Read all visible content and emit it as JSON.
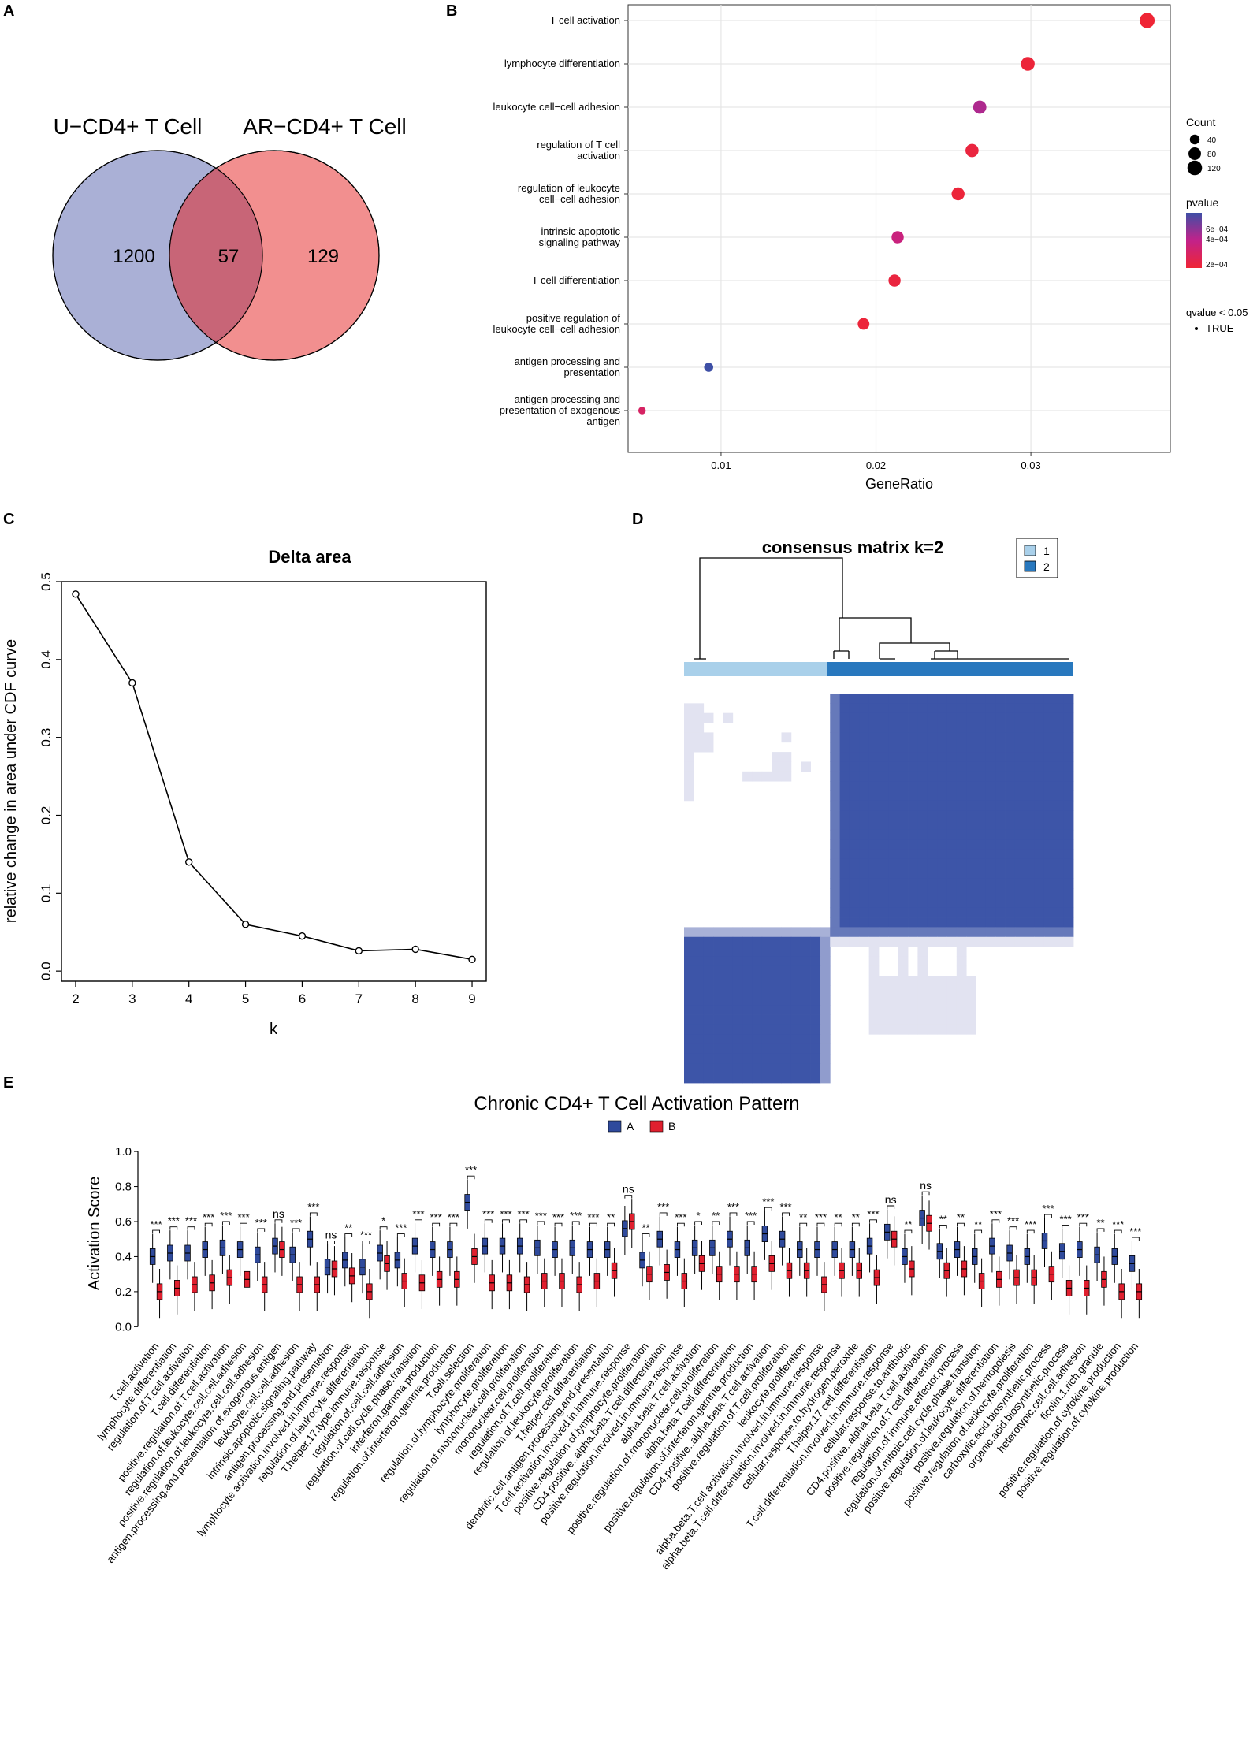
{
  "panel_labels": {
    "a": "A",
    "b": "B",
    "c": "C",
    "d": "D",
    "e": "E"
  },
  "colors": {
    "venn_left": "#aab0d6",
    "venn_right": "#f28f8f",
    "venn_overlap": "#c86577",
    "group_a": "#2f4a9c",
    "group_b": "#e0202f",
    "consensus_blue": "#3d55a8",
    "consensus_light": "#e2e3f1",
    "track_1": "#a9d0ea",
    "track_2": "#2878be"
  },
  "chart_data": [
    {
      "type": "venn",
      "sets": [
        {
          "name": "U−CD4+ T Cell",
          "only": 1200
        },
        {
          "name": "AR−CD4+ T Cell",
          "only": 129
        }
      ],
      "intersection": 57
    },
    {
      "type": "scatter",
      "subtype": "dotplot",
      "xlabel": "GeneRatio",
      "xlim": [
        0.004,
        0.039
      ],
      "xticks": [
        0.01,
        0.02,
        0.03
      ],
      "xtick_labels": [
        "0.01",
        "0.02",
        "0.03"
      ],
      "terms": [
        {
          "label": [
            "T cell activation"
          ],
          "gene_ratio": 0.0375,
          "count": 129,
          "pvalue": 2e-05
        },
        {
          "label": [
            "lymphocyte differentiation"
          ],
          "gene_ratio": 0.0298,
          "count": 102,
          "pvalue": 4e-05
        },
        {
          "label": [
            "leukocyte cell−cell adhesion"
          ],
          "gene_ratio": 0.0267,
          "count": 92,
          "pvalue": 0.0004
        },
        {
          "label": [
            "regulation of T cell",
            "activation"
          ],
          "gene_ratio": 0.0262,
          "count": 90,
          "pvalue": 6e-05
        },
        {
          "label": [
            "regulation of leukocyte",
            "cell−cell adhesion"
          ],
          "gene_ratio": 0.0253,
          "count": 87,
          "pvalue": 4e-05
        },
        {
          "label": [
            "intrinsic apoptotic",
            "signaling pathway"
          ],
          "gene_ratio": 0.0214,
          "count": 74,
          "pvalue": 0.0003
        },
        {
          "label": [
            "T cell differentiation"
          ],
          "gene_ratio": 0.0212,
          "count": 73,
          "pvalue": 6e-05
        },
        {
          "label": [
            "positive regulation of",
            "leukocyte cell−cell adhesion"
          ],
          "gene_ratio": 0.0192,
          "count": 66,
          "pvalue": 4e-05
        },
        {
          "label": [
            "antigen processing and",
            "presentation"
          ],
          "gene_ratio": 0.0092,
          "count": 32,
          "pvalue": 0.00068
        },
        {
          "label": [
            "antigen processing and",
            "presentation of exogenous",
            "antigen"
          ],
          "gene_ratio": 0.0049,
          "count": 17,
          "pvalue": 0.0002
        }
      ],
      "legend_count_title": "Count",
      "legend_count_values": [
        40,
        80,
        120
      ],
      "legend_count_labels": [
        "40",
        "80",
        "120"
      ],
      "legend_p_title": "pvalue",
      "legend_p_labels": [
        "6e−04",
        "4e−04",
        "2e−04"
      ],
      "legend_q_title": "qvalue < 0.05",
      "legend_q_label": "TRUE"
    },
    {
      "type": "line",
      "title": "Delta area",
      "xlabel": "k",
      "ylabel": "relative change in area under CDF curve",
      "x": [
        2,
        3,
        4,
        5,
        6,
        7,
        8,
        9
      ],
      "y": [
        0.484,
        0.37,
        0.14,
        0.06,
        0.045,
        0.026,
        0.028,
        0.015
      ],
      "xlim": [
        1.75,
        9.25
      ],
      "ylim": [
        -0.013,
        0.5
      ],
      "yticks": [
        0.0,
        0.1,
        0.2,
        0.3,
        0.4,
        0.5
      ],
      "ytick_labels": [
        "0.0",
        "0.1",
        "0.2",
        "0.3",
        "0.4",
        "0.5"
      ],
      "xtick_labels": [
        "2",
        "3",
        "4",
        "5",
        "6",
        "7",
        "8",
        "9"
      ]
    },
    {
      "type": "heatmap",
      "title": "consensus matrix k=2",
      "legend": [
        "1",
        "2"
      ],
      "cluster_sizes": [
        15,
        25
      ]
    },
    {
      "type": "box",
      "title": "Chronic CD4+ T Cell Activation Pattern",
      "ylabel": "Activation Score",
      "ylim": [
        -0.03,
        1.05
      ],
      "yticks": [
        0.0,
        0.2,
        0.4,
        0.6,
        0.8,
        1.0
      ],
      "ytick_labels": [
        "0.0",
        "0.2",
        "0.4",
        "0.6",
        "0.8",
        "1.0"
      ],
      "legend": [
        "A",
        "B"
      ],
      "categories": [
        {
          "label": "T.cell.activation",
          "a": 0.4,
          "b": 0.2,
          "sig": "***"
        },
        {
          "label": "lymphocyte.differentiation",
          "a": 0.42,
          "b": 0.22,
          "sig": "***"
        },
        {
          "label": "regulation.of.T.cell.activation",
          "a": 0.42,
          "b": 0.24,
          "sig": "***"
        },
        {
          "label": "T.cell.differentiation",
          "a": 0.44,
          "b": 0.25,
          "sig": "***"
        },
        {
          "label": "positive.regulation.of.T.cell.activation",
          "a": 0.45,
          "b": 0.28,
          "sig": "***"
        },
        {
          "label": "regulation.of.leukocyte.cell.cell.adhesion",
          "a": 0.44,
          "b": 0.27,
          "sig": "***"
        },
        {
          "label": "positive.regulation.of.leukocyte.cell.cell.adhesion",
          "a": 0.41,
          "b": 0.24,
          "sig": "***"
        },
        {
          "label": "antigen.processing.and.presentation.of.exogenous.antigen",
          "a": 0.46,
          "b": 0.44,
          "sig": "ns"
        },
        {
          "label": "leukocyte.cell.cell.adhesion",
          "a": 0.41,
          "b": 0.24,
          "sig": "***"
        },
        {
          "label": "intrinsic.apoptotic.signaling.pathway",
          "a": 0.5,
          "b": 0.24,
          "sig": "***"
        },
        {
          "label": "antigen.processing.and.presentation",
          "a": 0.34,
          "b": 0.33,
          "sig": "ns"
        },
        {
          "label": "lymphocyte.activation.involved.in.immune.response",
          "a": 0.38,
          "b": 0.29,
          "sig": "**"
        },
        {
          "label": "regulation.of.leukocyte.differentiation",
          "a": 0.34,
          "b": 0.2,
          "sig": "***"
        },
        {
          "label": "T.helper.17.type.immune.response",
          "a": 0.42,
          "b": 0.36,
          "sig": "*"
        },
        {
          "label": "regulation.of.cell.cell.adhesion",
          "a": 0.38,
          "b": 0.26,
          "sig": "***"
        },
        {
          "label": "regulation.of.cell.cycle.phase.transition",
          "a": 0.46,
          "b": 0.25,
          "sig": "***"
        },
        {
          "label": "interferon.gamma.production",
          "a": 0.44,
          "b": 0.27,
          "sig": "***"
        },
        {
          "label": "regulation.of.interferon.gamma.production",
          "a": 0.44,
          "b": 0.27,
          "sig": "***"
        },
        {
          "label": "T.cell.selection",
          "a": 0.71,
          "b": 0.4,
          "sig": "***"
        },
        {
          "label": "regulation.of.lymphocyte.proliferation",
          "a": 0.46,
          "b": 0.25,
          "sig": "***"
        },
        {
          "label": "lymphocyte.proliferation",
          "a": 0.46,
          "b": 0.25,
          "sig": "***"
        },
        {
          "label": "regulation.of.mononuclear.cell.proliferation",
          "a": 0.46,
          "b": 0.24,
          "sig": "***"
        },
        {
          "label": "mononuclear.cell.proliferation",
          "a": 0.45,
          "b": 0.26,
          "sig": "***"
        },
        {
          "label": "regulation.of.T.cell.proliferation",
          "a": 0.44,
          "b": 0.26,
          "sig": "***"
        },
        {
          "label": "regulation.of.leukocyte.proliferation",
          "a": 0.45,
          "b": 0.24,
          "sig": "***"
        },
        {
          "label": "T.helper.cell.differentiation",
          "a": 0.44,
          "b": 0.26,
          "sig": "***"
        },
        {
          "label": "dendritic.cell.antigen.processing.and.presentation",
          "a": 0.44,
          "b": 0.32,
          "sig": "**"
        },
        {
          "label": "T.cell.activation.involved.in.immune.response",
          "a": 0.56,
          "b": 0.6,
          "sig": "ns"
        },
        {
          "label": "positive.regulation.of.lymphocyte.proliferation",
          "a": 0.38,
          "b": 0.3,
          "sig": "**"
        },
        {
          "label": "CD4.positive..alpha.beta.T.cell.differentiation",
          "a": 0.5,
          "b": 0.31,
          "sig": "***"
        },
        {
          "label": "positive.regulation.involved.in.immune.response",
          "a": 0.44,
          "b": 0.26,
          "sig": "***"
        },
        {
          "label": "alpha.beta.T.cell.activation",
          "a": 0.45,
          "b": 0.36,
          "sig": "*"
        },
        {
          "label": "positive.regulation.of.mononuclear.cell.proliferation",
          "a": 0.45,
          "b": 0.3,
          "sig": "**"
        },
        {
          "label": "alpha.beta.T.cell.differentiation",
          "a": 0.5,
          "b": 0.3,
          "sig": "***"
        },
        {
          "label": "positive.regulation.of.interferon.gamma.production",
          "a": 0.45,
          "b": 0.3,
          "sig": "***"
        },
        {
          "label": "CD4.positive..alpha.beta.T.cell.activation",
          "a": 0.53,
          "b": 0.36,
          "sig": "***"
        },
        {
          "label": "positive.regulation.of.T.cell.proliferation",
          "a": 0.5,
          "b": 0.32,
          "sig": "***"
        },
        {
          "label": "leukocyte.proliferation",
          "a": 0.44,
          "b": 0.32,
          "sig": "**"
        },
        {
          "label": "alpha.beta.T.cell.activation.involved.in.immune.response",
          "a": 0.44,
          "b": 0.24,
          "sig": "***"
        },
        {
          "label": "alpha.beta.T.cell.differentiation.involved.in.immune.response",
          "a": 0.44,
          "b": 0.32,
          "sig": "**"
        },
        {
          "label": "cellular.response.to.hydrogen.peroxide",
          "a": 0.44,
          "b": 0.32,
          "sig": "**"
        },
        {
          "label": "T.helper.17.cell.differentiation",
          "a": 0.46,
          "b": 0.28,
          "sig": "***"
        },
        {
          "label": "T.cell.differentiation.involved.in.immune.response",
          "a": 0.54,
          "b": 0.5,
          "sig": "ns"
        },
        {
          "label": "cellular.response.to.antibiotic",
          "a": 0.4,
          "b": 0.33,
          "sig": "**"
        },
        {
          "label": "CD4.positive..alpha.beta.T.cell.activation",
          "a": 0.62,
          "b": 0.59,
          "sig": "ns"
        },
        {
          "label": "positive.regulation.of.T.cell.differentiation",
          "a": 0.43,
          "b": 0.32,
          "sig": "**"
        },
        {
          "label": "regulation.of.immune.effector.process",
          "a": 0.44,
          "b": 0.33,
          "sig": "**"
        },
        {
          "label": "regulation.of.mitotic.cell.cycle.phase.transition",
          "a": 0.4,
          "b": 0.26,
          "sig": "**"
        },
        {
          "label": "positive.regulation.of.leukocyte.differentiation",
          "a": 0.46,
          "b": 0.27,
          "sig": "***"
        },
        {
          "label": "positive.regulation.of.hemopoiesis",
          "a": 0.42,
          "b": 0.28,
          "sig": "***"
        },
        {
          "label": "positive.regulation.of.leukocyte.proliferation",
          "a": 0.4,
          "b": 0.28,
          "sig": "***"
        },
        {
          "label": "carboxylic.acid.biosynthetic.process",
          "a": 0.49,
          "b": 0.3,
          "sig": "***"
        },
        {
          "label": "organic.acid.biosynthetic.process",
          "a": 0.43,
          "b": 0.22,
          "sig": "***"
        },
        {
          "label": "heterotypic.cell.cell.adhesion",
          "a": 0.44,
          "b": 0.22,
          "sig": "***"
        },
        {
          "label": "ficolin.1.rich.granule",
          "a": 0.41,
          "b": 0.27,
          "sig": "**"
        },
        {
          "label": "positive.regulation.of.cytokine.production",
          "a": 0.4,
          "b": 0.2,
          "sig": "***"
        },
        {
          "label": "positive.regulation.of.cytokine.production",
          "a": 0.36,
          "b": 0.2,
          "sig": "***"
        }
      ]
    }
  ]
}
